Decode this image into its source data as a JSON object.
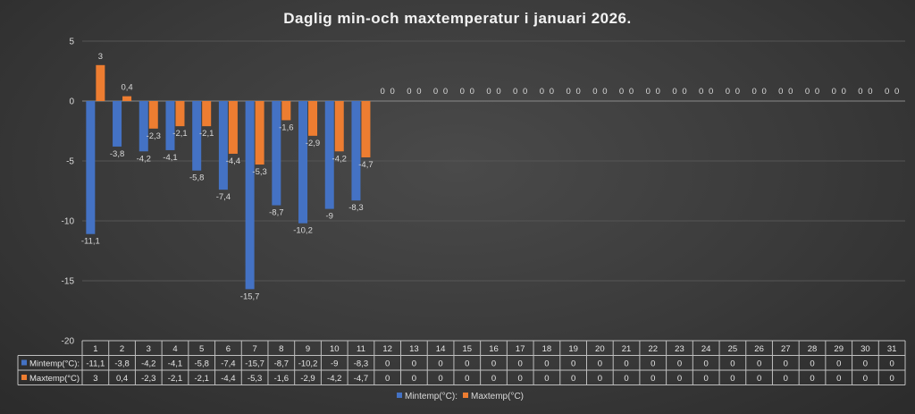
{
  "chart_data": {
    "type": "bar",
    "title": "Daglig min-och maxtemperatur i januari 2026.",
    "xlabel": "",
    "ylabel": "",
    "ylim": [
      -20,
      5
    ],
    "yticks": [
      5,
      0,
      -5,
      -10,
      -15,
      -20
    ],
    "categories": [
      "1",
      "2",
      "3",
      "4",
      "5",
      "6",
      "7",
      "8",
      "9",
      "10",
      "11",
      "12",
      "13",
      "14",
      "15",
      "16",
      "17",
      "18",
      "19",
      "20",
      "21",
      "22",
      "23",
      "24",
      "25",
      "26",
      "27",
      "28",
      "29",
      "30",
      "31"
    ],
    "series": [
      {
        "name": "Mintemp(°C):",
        "color": "#4472c4",
        "values": [
          -11.1,
          -3.8,
          -4.2,
          -4.1,
          -5.8,
          -7.4,
          -15.7,
          -8.7,
          -10.2,
          -9,
          -8.3,
          0,
          0,
          0,
          0,
          0,
          0,
          0,
          0,
          0,
          0,
          0,
          0,
          0,
          0,
          0,
          0,
          0,
          0,
          0,
          0
        ],
        "labels": [
          "-11,1",
          "-3,8",
          "-4,2",
          "-4,1",
          "-5,8",
          "-7,4",
          "-15,7",
          "-8,7",
          "-10,2",
          "-9",
          "-8,3",
          "0",
          "0",
          "0",
          "0",
          "0",
          "0",
          "0",
          "0",
          "0",
          "0",
          "0",
          "0",
          "0",
          "0",
          "0",
          "0",
          "0",
          "0",
          "0",
          "0"
        ]
      },
      {
        "name": "Maxtemp(°C)",
        "color": "#ed7d31",
        "values": [
          3,
          0.4,
          -2.3,
          -2.1,
          -2.1,
          -4.4,
          -5.3,
          -1.6,
          -2.9,
          -4.2,
          -4.7,
          0,
          0,
          0,
          0,
          0,
          0,
          0,
          0,
          0,
          0,
          0,
          0,
          0,
          0,
          0,
          0,
          0,
          0,
          0,
          0
        ],
        "labels": [
          "3",
          "0,4",
          "-2,3",
          "-2,1",
          "-2,1",
          "-4,4",
          "-5,3",
          "-1,6",
          "-2,9",
          "-4,2",
          "-4,7",
          "0",
          "0",
          "0",
          "0",
          "0",
          "0",
          "0",
          "0",
          "0",
          "0",
          "0",
          "0",
          "0",
          "0",
          "0",
          "0",
          "0",
          "0",
          "0",
          "0"
        ]
      }
    ],
    "grid": true,
    "legend": "bottom",
    "data_table": true
  }
}
